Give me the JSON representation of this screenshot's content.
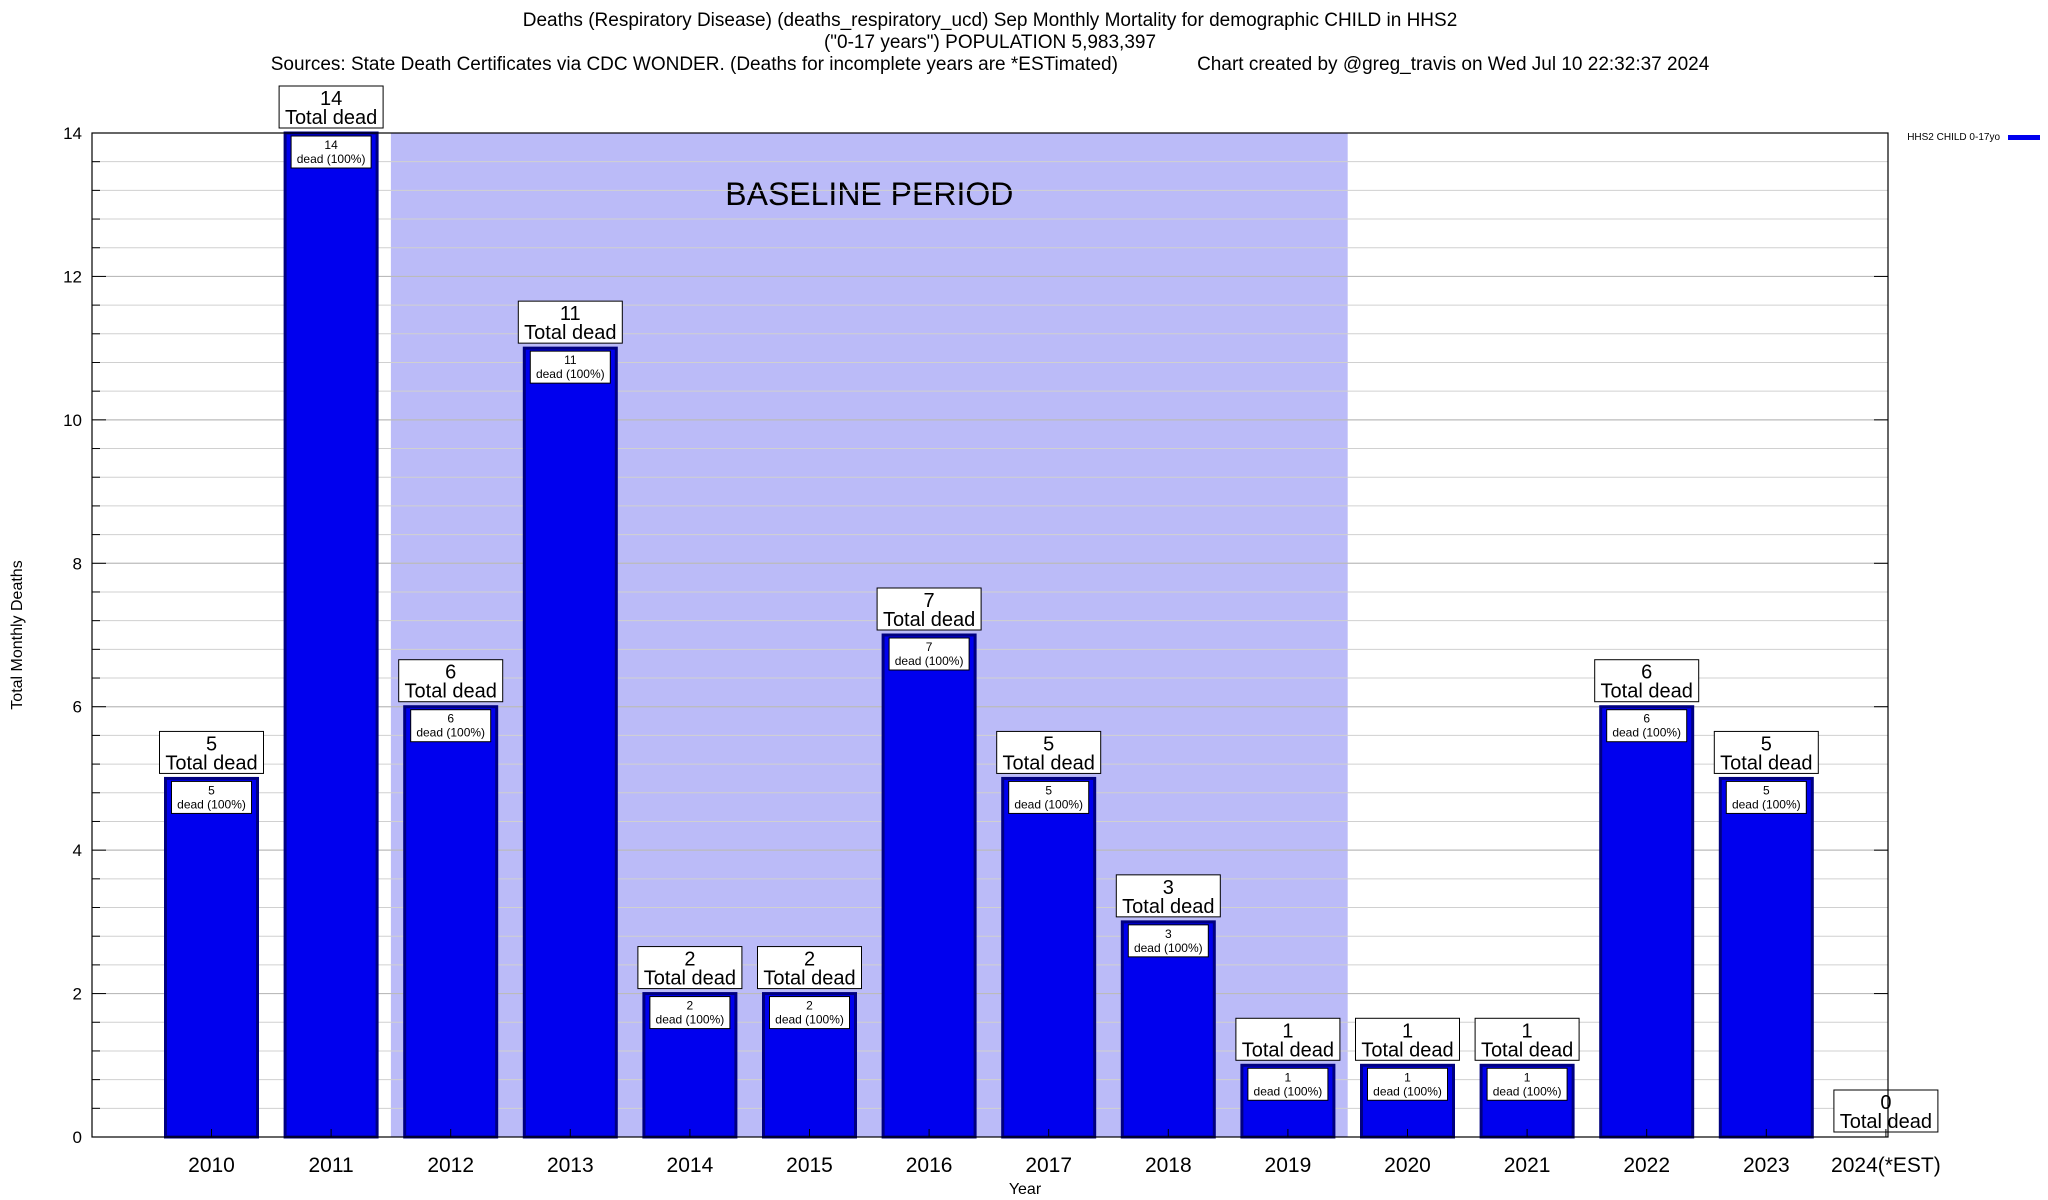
{
  "chart_data": {
    "type": "bar",
    "title_lines": [
      "Deaths (Respiratory Disease) (deaths_respiratory_ucd) Sep Monthly Mortality for demographic CHILD in HHS2",
      "(\"0-17 years\") POPULATION 5,983,397",
      "Sources: State Death Certificates via CDC WONDER. (Deaths for incomplete years are *ESTimated)               Chart created by @greg_travis on Wed Jul 10 22:32:37 2024"
    ],
    "xlabel": "Year",
    "ylabel": "Total Monthly Deaths",
    "ylim": [
      0,
      14
    ],
    "yticks": [
      0,
      2,
      4,
      6,
      8,
      10,
      12,
      14
    ],
    "grid": true,
    "legend": {
      "label": "HHS2 CHILD 0-17yo",
      "position": "top-right"
    },
    "categories": [
      "2010",
      "2011",
      "2012",
      "2013",
      "2014",
      "2015",
      "2016",
      "2017",
      "2018",
      "2019",
      "2020",
      "2021",
      "2022",
      "2023",
      "2024(*EST)"
    ],
    "values": [
      5,
      14,
      6,
      11,
      2,
      2,
      7,
      5,
      3,
      1,
      1,
      1,
      6,
      5,
      0
    ],
    "series": [
      {
        "name": "HHS2 CHILD 0-17yo",
        "values": [
          5,
          14,
          6,
          11,
          2,
          2,
          7,
          5,
          3,
          1,
          1,
          1,
          6,
          5,
          0
        ]
      }
    ],
    "total_label_suffix": "Total dead",
    "inner_label_suffix": "dead (100%)",
    "baseline": {
      "label": "BASELINE PERIOD",
      "start": "2012",
      "end": "2019"
    },
    "colors": {
      "bar": "#0000ee",
      "bar_edge": "#000080",
      "baseline": "#bbbbf8",
      "grid": "#bbbbbb"
    }
  }
}
